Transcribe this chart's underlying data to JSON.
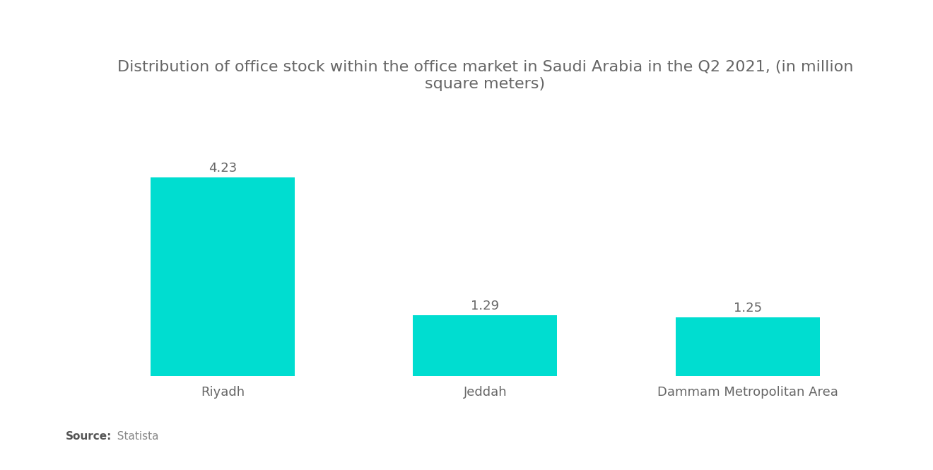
{
  "title": "Distribution of office stock within the office market in Saudi Arabia in the Q2 2021, (in million\nsquare meters)",
  "categories": [
    "Riyadh",
    "Jeddah",
    "Dammam Metropolitan Area"
  ],
  "values": [
    4.23,
    1.29,
    1.25
  ],
  "bar_color": "#00DDD0",
  "value_labels": [
    "4.23",
    "1.29",
    "1.25"
  ],
  "source_bold": "Source:",
  "source_normal": "  Statista",
  "title_fontsize": 16,
  "label_fontsize": 13,
  "value_fontsize": 13,
  "source_fontsize": 11,
  "background_color": "#ffffff",
  "text_color": "#666666",
  "ylim": [
    0,
    5.5
  ],
  "bar_width": 0.55,
  "x_positions": [
    0,
    1,
    2
  ]
}
